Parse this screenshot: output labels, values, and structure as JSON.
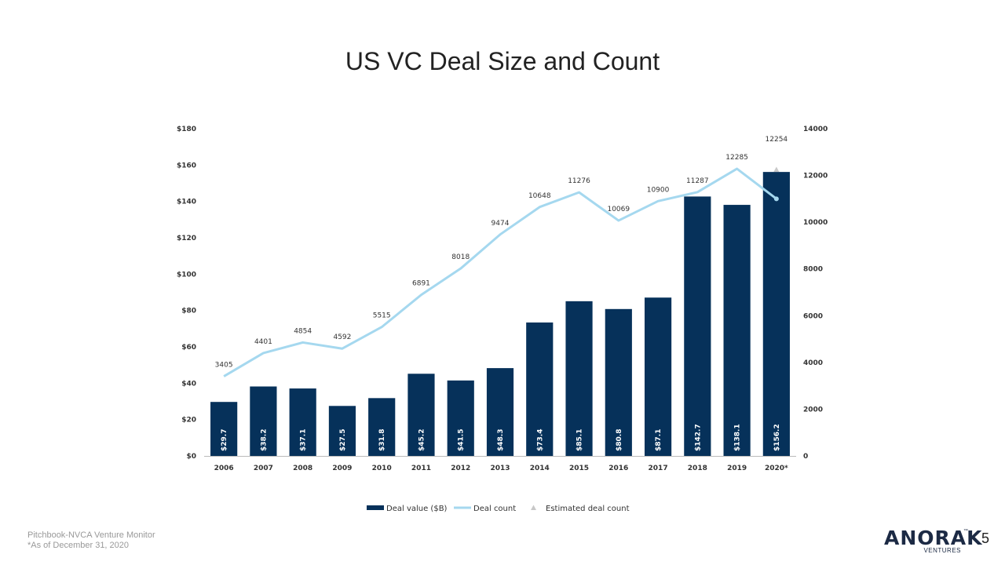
{
  "slide": {
    "title": "US VC Deal Size and Count",
    "page_number": "5",
    "footer": [
      "Pitchbook-NVCA Venture Monitor",
      "*As of December 31, 2020"
    ],
    "logo": {
      "wordmark": "ANORAK",
      "sub": "VENTURES",
      "tm": "™"
    }
  },
  "chart_data": {
    "type": "bar",
    "title": "US VC Deal Size and Count",
    "categories": [
      "2006",
      "2007",
      "2008",
      "2009",
      "2010",
      "2011",
      "2012",
      "2013",
      "2014",
      "2015",
      "2016",
      "2017",
      "2018",
      "2019",
      "2020*"
    ],
    "series": [
      {
        "name": "Deal value ($B)",
        "type": "bar",
        "axis": "left",
        "color": "#06315a",
        "values": [
          29.7,
          38.2,
          37.1,
          27.5,
          31.8,
          45.2,
          41.5,
          48.3,
          73.4,
          85.1,
          80.8,
          87.1,
          142.7,
          138.1,
          156.2
        ],
        "labels": [
          "$29.7",
          "$38.2",
          "$37.1",
          "$27.5",
          "$31.8",
          "$45.2",
          "$41.5",
          "$48.3",
          "$73.4",
          "$85.1",
          "$80.8",
          "$87.1",
          "$142.7",
          "$138.1",
          "$156.2"
        ]
      },
      {
        "name": "Deal count",
        "type": "line",
        "axis": "right",
        "color": "#a5d8ef",
        "values": [
          3405,
          4401,
          4854,
          4592,
          5515,
          6891,
          8018,
          9474,
          10648,
          11276,
          10069,
          10900,
          11287,
          12285,
          11000
        ],
        "labels": [
          "3405",
          "4401",
          "4854",
          "4592",
          "5515",
          "6891",
          "8018",
          "9474",
          "10648",
          "11276",
          "10069",
          "10900",
          "11287",
          "12285",
          ""
        ]
      },
      {
        "name": "Estimated deal count",
        "type": "marker",
        "axis": "right",
        "color": "#c8c8c8",
        "category": "2020*",
        "value": 12254,
        "label": "12254"
      }
    ],
    "yaxis_left": {
      "min": 0,
      "max": 180,
      "step": 20,
      "tick_labels": [
        "$0",
        "$20",
        "$40",
        "$60",
        "$80",
        "$100",
        "$120",
        "$140",
        "$160",
        "$180"
      ]
    },
    "yaxis_right": {
      "min": 0,
      "max": 14000,
      "step": 2000,
      "tick_labels": [
        "0",
        "2000",
        "4000",
        "6000",
        "8000",
        "10000",
        "12000",
        "14000"
      ]
    },
    "grid": false,
    "legend_position": "bottom"
  }
}
